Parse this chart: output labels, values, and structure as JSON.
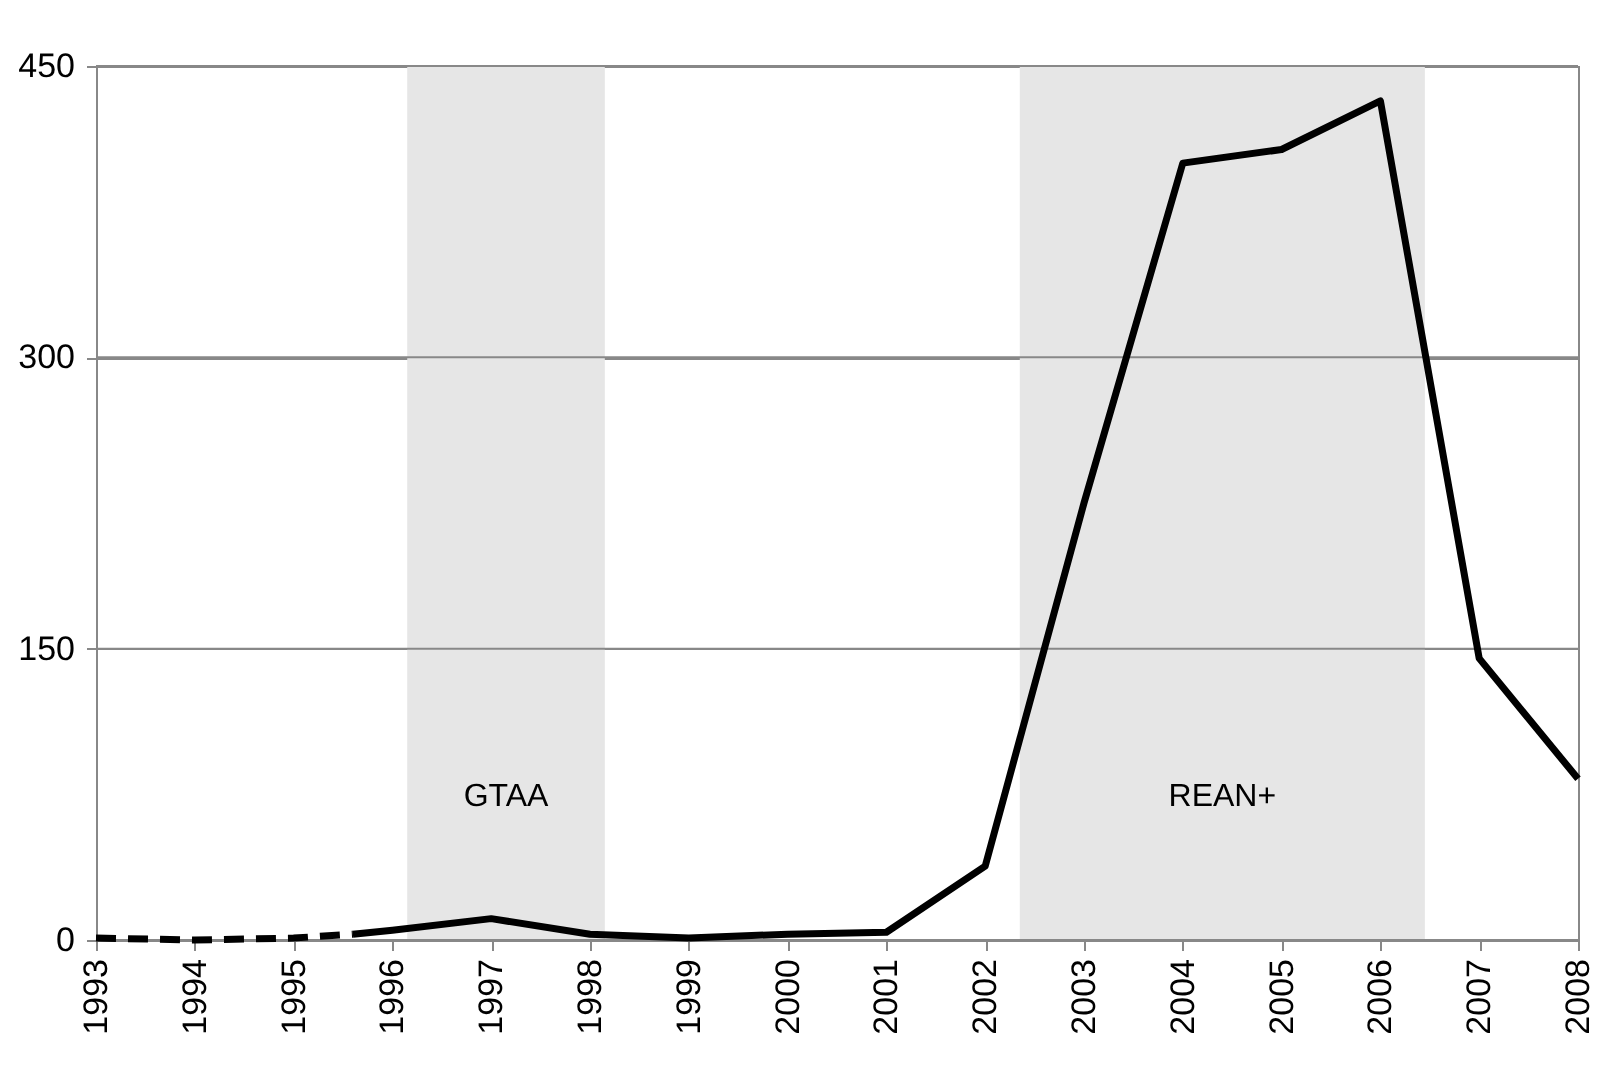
{
  "chart_data": {
    "type": "line",
    "xlim": [
      1993,
      2008
    ],
    "xticks": [
      1993,
      1994,
      1995,
      1996,
      1997,
      1998,
      1999,
      2000,
      2001,
      2002,
      2003,
      2004,
      2005,
      2006,
      2007,
      2008
    ],
    "ylim": [
      0,
      450
    ],
    "yticks": [
      0,
      150,
      300,
      450
    ],
    "grid": "y",
    "series": [
      {
        "color": "#000000",
        "line_style": "dashed",
        "x": [
          1993,
          1994,
          1995,
          1995.6
        ],
        "values": [
          1,
          0,
          1,
          3
        ]
      },
      {
        "color": "#000000",
        "line_style": "solid",
        "x": [
          1995.6,
          1996,
          1997,
          1998,
          1999,
          2000,
          2001,
          2002,
          2003,
          2004,
          2005,
          2006,
          2007,
          2008
        ],
        "values": [
          3,
          5,
          11,
          3,
          1,
          3,
          4,
          38,
          225,
          400,
          407,
          432,
          145,
          83
        ]
      }
    ],
    "bands": [
      {
        "axis": "x",
        "from": 1996.15,
        "to": 1998.15,
        "label": "GTAA",
        "color": "#e6e6e6"
      },
      {
        "axis": "x",
        "from": 2002.35,
        "to": 2006.45,
        "label": "REAN+",
        "color": "#e6e6e6"
      }
    ]
  }
}
